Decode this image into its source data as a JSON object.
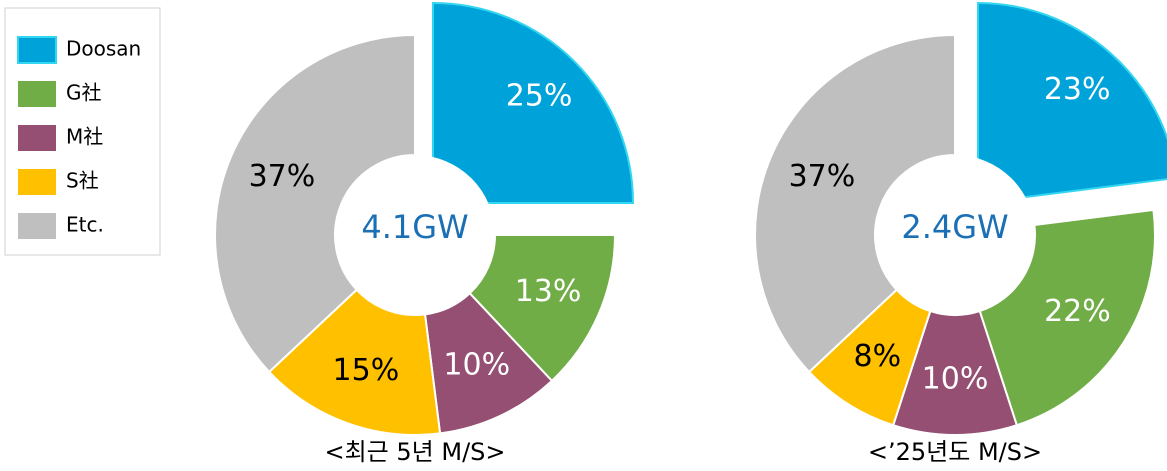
{
  "chart_data": [
    {
      "type": "pie",
      "title": "<최근 5년 M/S>",
      "center_label": "4.1GW",
      "categories": [
        "Doosan",
        "G社",
        "M社",
        "S社",
        "Etc."
      ],
      "values": [
        25,
        13,
        10,
        15,
        37
      ],
      "value_labels": [
        "25%",
        "13%",
        "10%",
        "15%",
        "37%"
      ],
      "colors": [
        "#00a3d9",
        "#70ad47",
        "#954f72",
        "#ffc000",
        "#bfbfbf"
      ]
    },
    {
      "type": "pie",
      "title": "<’25년도 M/S>",
      "center_label": "2.4GW",
      "categories": [
        "Doosan",
        "G社",
        "M社",
        "S社",
        "Etc."
      ],
      "values": [
        23,
        22,
        10,
        8,
        37
      ],
      "value_labels": [
        "23%",
        "22%",
        "10%",
        "8%",
        "37%"
      ],
      "colors": [
        "#00a3d9",
        "#70ad47",
        "#954f72",
        "#ffc000",
        "#bfbfbf"
      ]
    }
  ]
}
